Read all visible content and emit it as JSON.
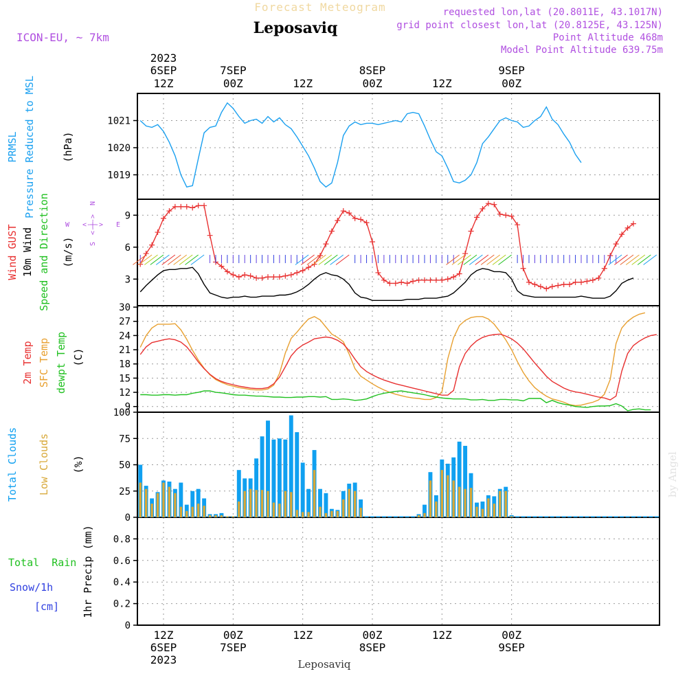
{
  "header": {
    "title": "Leposaviq",
    "subtitle": "Forecast Meteogram",
    "model": "ICON-EU, ~ 7km",
    "requested": "requested lon,lat (20.8011E, 43.1017N)",
    "grid_point": "grid point closest lon,lat (20.8125E, 43.125N)",
    "point_altitude": "Point Altitude 468m",
    "model_altitude": "Model Point Altitude 639.75m",
    "footer_label": "Leposaviq",
    "watermark": "by Angel"
  },
  "colors": {
    "pressure": "#1aa0f0",
    "gust": "#e83030",
    "wind": "#000000",
    "sfc_temp": "#e8a030",
    "dewpt": "#20c020",
    "total_clouds": "#10a0f0",
    "low_clouds": "#d8a838",
    "purple": "#b050e0",
    "rain": "#20c020",
    "snow": "#3040e0"
  },
  "time_axis": {
    "top": [
      {
        "i": 4,
        "l1": "2023",
        "l2": "6SEP",
        "l3": "12Z"
      },
      {
        "i": 16,
        "l1": "",
        "l2": "7SEP",
        "l3": "00Z"
      },
      {
        "i": 28,
        "l1": "",
        "l2": "",
        "l3": "12Z"
      },
      {
        "i": 40,
        "l1": "",
        "l2": "8SEP",
        "l3": "00Z"
      },
      {
        "i": 52,
        "l1": "",
        "l2": "",
        "l3": "12Z"
      },
      {
        "i": 64,
        "l1": "",
        "l2": "9SEP",
        "l3": "00Z"
      }
    ],
    "bottom": [
      {
        "i": 4,
        "l1": "12Z",
        "l2": "6SEP",
        "l3": "2023"
      },
      {
        "i": 16,
        "l1": "00Z",
        "l2": "7SEP",
        "l3": ""
      },
      {
        "i": 28,
        "l1": "12Z",
        "l2": "",
        "l3": ""
      },
      {
        "i": 40,
        "l1": "00Z",
        "l2": "8SEP",
        "l3": ""
      },
      {
        "i": 52,
        "l1": "12Z",
        "l2": "",
        "l3": ""
      },
      {
        "i": 64,
        "l1": "00Z",
        "l2": "9SEP",
        "l3": ""
      }
    ]
  },
  "panels": {
    "pressure": {
      "label1": "PRMSL",
      "label2": "Pressure Reduced to MSL",
      "unit": "(hPa)"
    },
    "wind": {
      "label_gust": "Wind GUST",
      "label_wind": "10m Wind",
      "label_dir": "Speed and Direction",
      "unit": "(m/s)",
      "compass_n": "N",
      "compass_s": "S",
      "compass_w": "W",
      "compass_e": "E",
      "compass_arrows": "<-|->"
    },
    "temp": {
      "label_2m": "2m Temp",
      "label_sfc": "SFC Temp",
      "label_dew": "dewpt Temp",
      "unit": "(C)"
    },
    "clouds": {
      "label_total": "Total Clouds",
      "label_low": "Low Clouds",
      "unit": "(%)"
    },
    "precip": {
      "label_rain": "Total  Rain",
      "label_snow": "Snow/1h",
      "label_cm": "[cm]",
      "label_axis": "1hr Precip (mm)"
    }
  },
  "chart_data": [
    {
      "type": "line",
      "title": "PRMSL",
      "ylabel": "(hPa)",
      "yticks": [
        1019,
        1020,
        1021
      ],
      "ylim": [
        1018.1,
        1022.0
      ],
      "x_start": "2023-09-06 08Z",
      "x_step_hours": 1,
      "grid": true,
      "series": [
        {
          "name": "PRMSL",
          "values": [
            1021.0,
            1020.8,
            1020.75,
            1020.85,
            1020.6,
            1020.2,
            1019.7,
            1019.0,
            1018.55,
            1018.6,
            1019.6,
            1020.55,
            1020.75,
            1020.8,
            1021.3,
            1021.65,
            1021.45,
            1021.15,
            1020.9,
            1021.0,
            1021.05,
            1020.9,
            1021.15,
            1020.95,
            1021.1,
            1020.85,
            1020.7,
            1020.4,
            1020.05,
            1019.7,
            1019.25,
            1018.75,
            1018.55,
            1018.7,
            1019.45,
            1020.45,
            1020.8,
            1020.95,
            1020.85,
            1020.9,
            1020.9,
            1020.85,
            1020.9,
            1020.95,
            1021.0,
            1020.95,
            1021.25,
            1021.3,
            1021.25,
            1020.8,
            1020.3,
            1019.85,
            1019.7,
            1019.25,
            1018.75,
            1018.7,
            1018.8,
            1019.0,
            1019.45,
            1020.15,
            1020.4,
            1020.7,
            1021.0,
            1021.1,
            1021.0,
            1020.95,
            1020.75,
            1020.8,
            1021.0,
            1021.15,
            1021.5,
            1021.05,
            1020.85,
            1020.5,
            1020.2,
            1019.75,
            1019.45
          ]
        }
      ]
    },
    {
      "type": "line",
      "title": "Wind GUST / 10m Wind",
      "ylabel": "(m/s)",
      "yticks": [
        3,
        6,
        9
      ],
      "ylim": [
        0.5,
        10.5
      ],
      "x_start": "2023-09-06 08Z",
      "x_step_hours": 1,
      "grid": true,
      "series": [
        {
          "name": "Wind GUST",
          "values": [
            4.4,
            5.4,
            6.2,
            7.4,
            8.7,
            9.4,
            9.8,
            9.8,
            9.8,
            9.7,
            9.9,
            9.9,
            7.1,
            4.6,
            4.2,
            3.7,
            3.4,
            3.2,
            3.4,
            3.3,
            3.1,
            3.1,
            3.2,
            3.2,
            3.2,
            3.3,
            3.4,
            3.6,
            3.8,
            4.1,
            4.4,
            5.2,
            6.3,
            7.5,
            8.5,
            9.4,
            9.2,
            8.7,
            8.6,
            8.3,
            6.5,
            3.6,
            2.9,
            2.6,
            2.6,
            2.7,
            2.6,
            2.8,
            2.9,
            2.9,
            2.9,
            2.9,
            2.9,
            3.0,
            3.2,
            3.5,
            5.4,
            7.5,
            8.8,
            9.6,
            10.1,
            10.0,
            9.1,
            9.0,
            8.9,
            8.1,
            4.0,
            2.7,
            2.5,
            2.3,
            2.1,
            2.3,
            2.4,
            2.5,
            2.5,
            2.7,
            2.7,
            2.8,
            2.9,
            3.1,
            4.0,
            5.2,
            6.3,
            7.2,
            7.8,
            8.2
          ]
        },
        {
          "name": "10m Wind",
          "values": [
            1.8,
            2.4,
            2.9,
            3.4,
            3.8,
            3.9,
            3.9,
            4.0,
            4.0,
            4.1,
            3.5,
            2.5,
            1.7,
            1.5,
            1.3,
            1.2,
            1.3,
            1.3,
            1.4,
            1.3,
            1.3,
            1.4,
            1.4,
            1.4,
            1.5,
            1.5,
            1.6,
            1.8,
            2.1,
            2.5,
            3.0,
            3.4,
            3.6,
            3.4,
            3.3,
            3.0,
            2.5,
            1.7,
            1.3,
            1.2,
            1.0,
            1.0,
            1.0,
            1.0,
            1.0,
            1.0,
            1.1,
            1.1,
            1.1,
            1.2,
            1.2,
            1.2,
            1.3,
            1.4,
            1.7,
            2.2,
            2.7,
            3.4,
            3.8,
            4.0,
            3.9,
            3.7,
            3.7,
            3.6,
            3.0,
            1.9,
            1.5,
            1.4,
            1.3,
            1.3,
            1.3,
            1.3,
            1.3,
            1.3,
            1.3,
            1.3,
            1.4,
            1.3,
            1.2,
            1.2,
            1.2,
            1.4,
            1.9,
            2.6,
            2.9,
            3.1
          ]
        }
      ]
    },
    {
      "type": "line",
      "title": "Temperature",
      "ylabel": "(C)",
      "yticks": [
        9,
        12,
        15,
        18,
        21,
        24,
        27,
        30
      ],
      "ylim": [
        7.8,
        30.3
      ],
      "x_start": "2023-09-06 08Z",
      "x_step_hours": 1,
      "grid": true,
      "series": [
        {
          "name": "2m Temp",
          "values": [
            20.0,
            21.6,
            22.5,
            22.8,
            23.1,
            23.3,
            23.1,
            22.6,
            21.6,
            20.1,
            18.4,
            17.0,
            15.8,
            14.9,
            14.3,
            13.9,
            13.6,
            13.3,
            13.1,
            12.9,
            12.8,
            12.8,
            13.0,
            13.8,
            15.2,
            17.4,
            19.7,
            21.1,
            22.0,
            22.6,
            23.3,
            23.5,
            23.7,
            23.5,
            23.0,
            22.2,
            20.8,
            19.0,
            17.4,
            16.4,
            15.7,
            15.1,
            14.6,
            14.2,
            13.8,
            13.5,
            13.2,
            12.9,
            12.6,
            12.3,
            12.0,
            11.7,
            11.4,
            11.4,
            12.4,
            17.4,
            20.2,
            21.8,
            22.9,
            23.6,
            24.0,
            24.2,
            24.3,
            23.9,
            23.3,
            22.4,
            21.2,
            19.7,
            18.2,
            16.8,
            15.4,
            14.3,
            13.6,
            12.9,
            12.4,
            12.1,
            11.9,
            11.6,
            11.3,
            11.0,
            10.8,
            10.4,
            11.2,
            16.5,
            20.2,
            21.9,
            22.8,
            23.5,
            24.0,
            24.2
          ]
        },
        {
          "name": "SFC Temp",
          "values": [
            21.5,
            24.0,
            25.6,
            26.4,
            26.4,
            26.4,
            26.5,
            25.2,
            23.2,
            20.9,
            18.8,
            17.1,
            15.7,
            14.7,
            14.1,
            13.6,
            13.3,
            13.0,
            12.8,
            12.6,
            12.5,
            12.5,
            12.7,
            13.5,
            16.0,
            20.3,
            23.4,
            24.7,
            26.2,
            27.5,
            28.0,
            27.3,
            25.8,
            24.3,
            23.6,
            22.7,
            20.1,
            17.0,
            15.4,
            14.6,
            13.8,
            13.1,
            12.5,
            12.0,
            11.6,
            11.3,
            11.0,
            10.8,
            10.7,
            10.5,
            10.5,
            10.9,
            12.1,
            19.1,
            23.5,
            26.1,
            27.2,
            27.8,
            28.0,
            28.0,
            27.5,
            26.4,
            24.8,
            23.1,
            21.0,
            18.5,
            16.2,
            14.4,
            13.0,
            12.0,
            11.2,
            10.6,
            10.3,
            9.9,
            9.4,
            9.2,
            9.3,
            9.6,
            9.9,
            10.4,
            11.6,
            14.7,
            22.3,
            25.6,
            27.0,
            27.9,
            28.5,
            28.8
          ]
        },
        {
          "name": "dewpt Temp",
          "values": [
            11.5,
            11.5,
            11.4,
            11.4,
            11.5,
            11.5,
            11.4,
            11.5,
            11.5,
            11.8,
            12.0,
            12.3,
            12.3,
            12.0,
            11.9,
            11.7,
            11.5,
            11.4,
            11.4,
            11.3,
            11.2,
            11.2,
            11.1,
            11.0,
            11.0,
            10.9,
            10.9,
            11.0,
            11.0,
            11.1,
            11.1,
            11.0,
            11.1,
            10.5,
            10.5,
            10.6,
            10.5,
            10.3,
            10.4,
            10.6,
            11.1,
            11.5,
            11.8,
            12.0,
            12.2,
            12.3,
            12.1,
            11.9,
            11.7,
            11.5,
            11.2,
            11.0,
            10.8,
            10.7,
            10.6,
            10.6,
            10.6,
            10.4,
            10.4,
            10.5,
            10.3,
            10.3,
            10.5,
            10.5,
            10.4,
            10.4,
            10.2,
            10.7,
            10.7,
            10.7,
            9.8,
            10.3,
            9.8,
            9.5,
            9.3,
            9.0,
            8.9,
            8.8,
            9.0,
            9.1,
            9.1,
            9.2,
            9.6,
            9.1,
            8.1,
            8.4,
            8.5,
            8.3,
            8.3
          ]
        }
      ]
    },
    {
      "type": "bar",
      "title": "Clouds",
      "ylabel": "(%)",
      "yticks": [
        0,
        25,
        50,
        75,
        100
      ],
      "ylim": [
        0,
        100
      ],
      "x_start": "2023-09-06 08Z",
      "x_step_hours": 1,
      "grid": true,
      "series": [
        {
          "name": "Total Clouds",
          "values": [
            50,
            30,
            18,
            24,
            35,
            34,
            27,
            33,
            12,
            25,
            27,
            18,
            3,
            3,
            4,
            1,
            1,
            45,
            37,
            37,
            56,
            77,
            92,
            74,
            75,
            74,
            97,
            81,
            52,
            27,
            64,
            27,
            23,
            8,
            7,
            25,
            32,
            33,
            17,
            1,
            1,
            1,
            1,
            1,
            1,
            1,
            1,
            1,
            3,
            12,
            43,
            21,
            55,
            51,
            57,
            72,
            68,
            42,
            14,
            15,
            21,
            20,
            27,
            29,
            2,
            1,
            1,
            1,
            1,
            1,
            1,
            1,
            1,
            1,
            1,
            1,
            1,
            1,
            1,
            1,
            1,
            1,
            1,
            1,
            1,
            1,
            1,
            1,
            1,
            1
          ]
        },
        {
          "name": "Low Clouds",
          "values": [
            33,
            27,
            13,
            23,
            33,
            29,
            23,
            10,
            6,
            10,
            13,
            11,
            2,
            2,
            2,
            1,
            1,
            15,
            25,
            27,
            26,
            26,
            25,
            14,
            13,
            25,
            24,
            7,
            5,
            5,
            45,
            10,
            4,
            6,
            6,
            17,
            27,
            25,
            9,
            0,
            0,
            0,
            0,
            0,
            0,
            0,
            0,
            0,
            2,
            4,
            35,
            15,
            45,
            40,
            35,
            29,
            27,
            28,
            10,
            8,
            18,
            13,
            25,
            25,
            1,
            0,
            0,
            0,
            0,
            0,
            0,
            0,
            0,
            0,
            0,
            0,
            0,
            0,
            0,
            0,
            0,
            0,
            0,
            0,
            0,
            0,
            0,
            0,
            0,
            0
          ]
        }
      ]
    },
    {
      "type": "bar",
      "title": "1hr Precip",
      "ylabel": "1hr Precip (mm)",
      "yticks": [
        0,
        0.2,
        0.4,
        0.6,
        0.8
      ],
      "ylim": [
        0,
        1.0
      ],
      "grid": true,
      "series": [
        {
          "name": "Total Rain",
          "values": []
        },
        {
          "name": "Snow/1h",
          "values": []
        }
      ]
    }
  ]
}
